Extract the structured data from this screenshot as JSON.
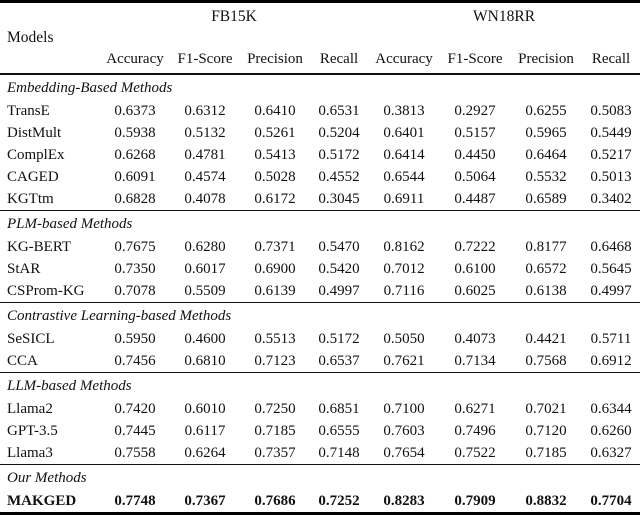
{
  "colors": {
    "background": "#ffffff",
    "text": "#111111",
    "heavy_rule": "#000000",
    "light_rule": "#4d4d4d"
  },
  "table": {
    "models_header": "Models",
    "groups": [
      {
        "label": "FB15K",
        "metrics": [
          "Accuracy",
          "F1-Score",
          "Precision",
          "Recall"
        ]
      },
      {
        "label": "WN18RR",
        "metrics": [
          "Accuracy",
          "F1-Score",
          "Precision",
          "Recall"
        ]
      }
    ],
    "sections": [
      {
        "title": "Embedding-Based Methods",
        "rows": [
          {
            "model": "TransE",
            "bold": false,
            "values": [
              "0.6373",
              "0.6312",
              "0.6410",
              "0.6531",
              "0.3813",
              "0.2927",
              "0.6255",
              "0.5083"
            ]
          },
          {
            "model": "DistMult",
            "bold": false,
            "values": [
              "0.5938",
              "0.5132",
              "0.5261",
              "0.5204",
              "0.6401",
              "0.5157",
              "0.5965",
              "0.5449"
            ]
          },
          {
            "model": "ComplEx",
            "bold": false,
            "values": [
              "0.6268",
              "0.4781",
              "0.5413",
              "0.5172",
              "0.6414",
              "0.4450",
              "0.6464",
              "0.5217"
            ]
          },
          {
            "model": "CAGED",
            "bold": false,
            "values": [
              "0.6091",
              "0.4574",
              "0.5028",
              "0.4552",
              "0.6544",
              "0.5064",
              "0.5532",
              "0.5013"
            ]
          },
          {
            "model": "KGTtm",
            "bold": false,
            "values": [
              "0.6828",
              "0.4078",
              "0.6172",
              "0.3045",
              "0.6911",
              "0.4487",
              "0.6589",
              "0.3402"
            ]
          }
        ]
      },
      {
        "title": "PLM-based Methods",
        "rows": [
          {
            "model": "KG-BERT",
            "bold": false,
            "values": [
              "0.7675",
              "0.6280",
              "0.7371",
              "0.5470",
              "0.8162",
              "0.7222",
              "0.8177",
              "0.6468"
            ]
          },
          {
            "model": "StAR",
            "bold": false,
            "values": [
              "0.7350",
              "0.6017",
              "0.6900",
              "0.5420",
              "0.7012",
              "0.6100",
              "0.6572",
              "0.5645"
            ]
          },
          {
            "model": "CSProm-KG",
            "bold": false,
            "values": [
              "0.7078",
              "0.5509",
              "0.6139",
              "0.4997",
              "0.7116",
              "0.6025",
              "0.6138",
              "0.4997"
            ]
          }
        ]
      },
      {
        "title": "Contrastive Learning-based Methods",
        "rows": [
          {
            "model": "SeSICL",
            "bold": false,
            "values": [
              "0.5950",
              "0.4600",
              "0.5513",
              "0.5172",
              "0.5050",
              "0.4073",
              "0.4421",
              "0.5711"
            ]
          },
          {
            "model": "CCA",
            "bold": false,
            "values": [
              "0.7456",
              "0.6810",
              "0.7123",
              "0.6537",
              "0.7621",
              "0.7134",
              "0.7568",
              "0.6912"
            ]
          }
        ]
      },
      {
        "title": "LLM-based Methods",
        "rows": [
          {
            "model": "Llama2",
            "bold": false,
            "values": [
              "0.7420",
              "0.6010",
              "0.7250",
              "0.6851",
              "0.7100",
              "0.6271",
              "0.7021",
              "0.6344"
            ]
          },
          {
            "model": "GPT-3.5",
            "bold": false,
            "values": [
              "0.7445",
              "0.6117",
              "0.7185",
              "0.6555",
              "0.7603",
              "0.7496",
              "0.7120",
              "0.6260"
            ]
          },
          {
            "model": "Llama3",
            "bold": false,
            "values": [
              "0.7558",
              "0.6264",
              "0.7357",
              "0.7148",
              "0.7654",
              "0.7522",
              "0.7185",
              "0.6327"
            ]
          }
        ]
      },
      {
        "title": "Our Methods",
        "rows": [
          {
            "model": "MAKGED",
            "bold": true,
            "values": [
              "0.7748",
              "0.7367",
              "0.7686",
              "0.7252",
              "0.8283",
              "0.7909",
              "0.8832",
              "0.7704"
            ]
          }
        ]
      }
    ]
  }
}
